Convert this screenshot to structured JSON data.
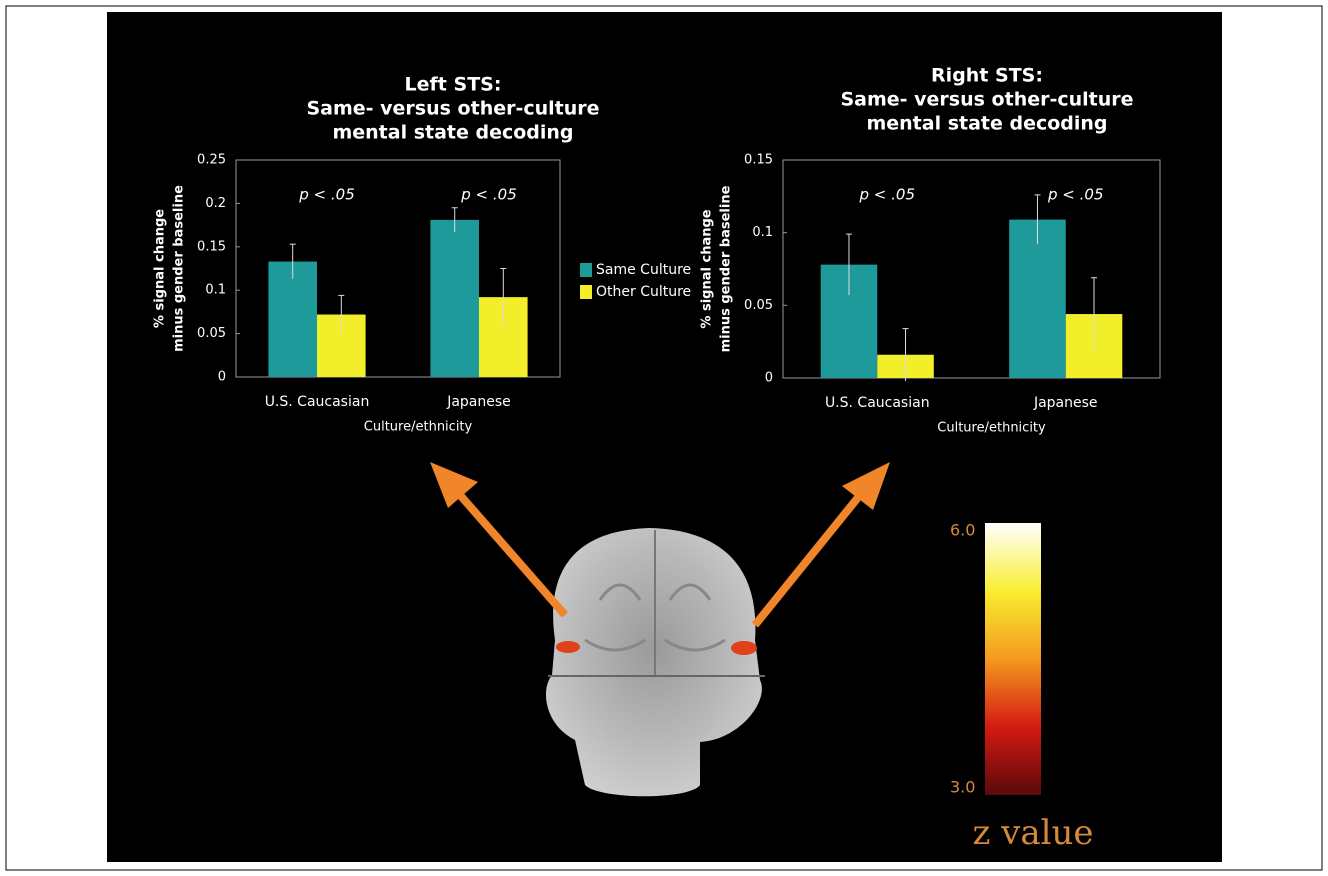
{
  "chart_data": [
    {
      "type": "bar",
      "title": [
        "Left STS:",
        "Same- versus other-culture",
        "mental state decoding"
      ],
      "y_label": [
        "% signal change",
        "minus gender baseline"
      ],
      "x_label": "Culture/ethnicity",
      "categories": [
        "U.S. Caucasian",
        "Japanese"
      ],
      "annotations": [
        "p < .05",
        "p < .05"
      ],
      "series": [
        {
          "name": "Same Culture",
          "color": "#1f9a9a",
          "values": [
            0.133,
            0.181
          ],
          "errors": [
            0.02,
            0.014
          ]
        },
        {
          "name": "Other Culture",
          "color": "#f2ee2a",
          "values": [
            0.072,
            0.092
          ],
          "errors": [
            0.022,
            0.033
          ]
        }
      ],
      "ylim": [
        0,
        0.25
      ],
      "yticks": [
        0,
        0.05,
        0.1,
        0.15,
        0.2,
        0.25
      ],
      "legend": "right"
    },
    {
      "type": "bar",
      "title": [
        "Right STS:",
        "Same- versus other-culture",
        "mental state decoding"
      ],
      "y_label": [
        "% signal change",
        "minus gender baseline"
      ],
      "x_label": "Culture/ethnicity",
      "categories": [
        "U.S. Caucasian",
        "Japanese"
      ],
      "annotations": [
        "p < .05",
        "p < .05"
      ],
      "series": [
        {
          "name": "Same Culture",
          "color": "#1f9a9a",
          "values": [
            0.078,
            0.109
          ],
          "errors": [
            0.021,
            0.017
          ]
        },
        {
          "name": "Other Culture",
          "color": "#f2ee2a",
          "values": [
            0.016,
            0.044
          ],
          "errors": [
            0.018,
            0.025
          ]
        }
      ],
      "ylim": [
        0,
        0.15
      ],
      "yticks": [
        0,
        0.05,
        0.1,
        0.15
      ]
    }
  ],
  "colorbar": {
    "label": "z value",
    "lim": [
      3,
      6
    ],
    "ticks": [
      {
        "value": 6,
        "label": "6.0"
      },
      {
        "value": 3,
        "label": "3.0"
      }
    ],
    "colors": [
      "#5a0a0a",
      "#d41a12",
      "#f39a1e",
      "#f8ee30",
      "#ffffff"
    ]
  }
}
